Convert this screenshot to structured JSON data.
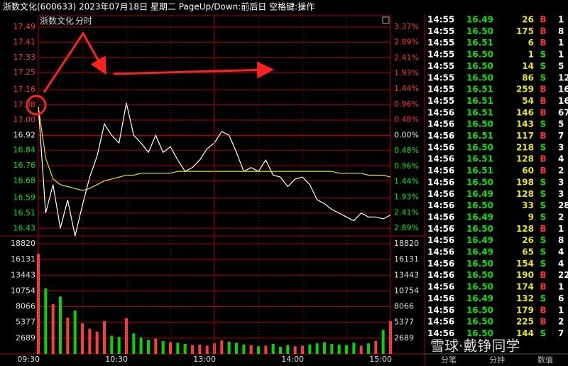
{
  "header": {
    "title": "浙数文化(600633)  2023年07月18日  星期二  PageUp/Down:前后日  空格键:操作"
  },
  "chart_data": [
    {
      "type": "line",
      "title": "浙数文化",
      "subtitle": "分时",
      "prev_close": 16.92,
      "x": [
        "09:30",
        "09:35",
        "09:40",
        "09:45",
        "09:50",
        "09:55",
        "10:00",
        "10:05",
        "10:10",
        "10:15",
        "10:20",
        "10:25",
        "10:30",
        "10:35",
        "10:40",
        "10:45",
        "10:50",
        "10:55",
        "11:00",
        "11:05",
        "11:10",
        "11:15",
        "11:20",
        "11:25",
        "11:30",
        "13:05",
        "13:10",
        "13:15",
        "13:20",
        "13:25",
        "13:30",
        "13:35",
        "13:40",
        "13:45",
        "13:50",
        "13:55",
        "14:00",
        "14:05",
        "14:10",
        "14:15",
        "14:20",
        "14:25",
        "14:30",
        "14:35",
        "14:40",
        "14:45",
        "14:50",
        "14:55",
        "15:00"
      ],
      "series": [
        {
          "color": "#ffffff",
          "values": [
            17.07,
            16.51,
            16.66,
            16.43,
            16.58,
            16.39,
            16.55,
            16.7,
            16.81,
            16.98,
            16.92,
            16.88,
            17.09,
            16.92,
            16.88,
            16.83,
            16.92,
            16.83,
            16.86,
            16.79,
            16.73,
            16.75,
            16.79,
            16.85,
            16.88,
            16.94,
            16.92,
            16.83,
            16.73,
            16.75,
            16.73,
            16.79,
            16.71,
            16.7,
            16.65,
            16.69,
            16.7,
            16.66,
            16.58,
            16.56,
            16.53,
            16.51,
            16.49,
            16.47,
            16.51,
            16.49,
            16.49,
            16.48,
            16.5
          ]
        },
        {
          "color": "#e8e800",
          "values": [
            17.07,
            16.8,
            16.69,
            16.66,
            16.65,
            16.64,
            16.63,
            16.64,
            16.66,
            16.68,
            16.69,
            16.7,
            16.71,
            16.71,
            16.72,
            16.72,
            16.72,
            16.72,
            16.72,
            16.73,
            16.73,
            16.73,
            16.73,
            16.73,
            16.73,
            16.73,
            16.73,
            16.73,
            16.73,
            16.73,
            16.73,
            16.73,
            16.73,
            16.73,
            16.73,
            16.73,
            16.73,
            16.73,
            16.73,
            16.73,
            16.73,
            16.72,
            16.72,
            16.72,
            16.72,
            16.71,
            16.71,
            16.71,
            16.7
          ]
        }
      ],
      "ylim": [
        16.39,
        17.55
      ],
      "yticks": [
        17.49,
        17.41,
        17.33,
        17.25,
        17.16,
        17.08,
        {
          "value": 17,
          "label": "17.00"
        },
        16.92,
        16.84,
        16.76,
        16.68,
        16.59,
        16.51,
        16.43
      ],
      "y2lim": [
        -3.13,
        3.72
      ],
      "y2ticks": [
        {
          "value": 3.37,
          "label": "3.37%"
        },
        {
          "value": 2.89,
          "label": "2.89%"
        },
        {
          "value": 2.41,
          "label": "2.41%"
        },
        {
          "value": 1.93,
          "label": "1.93%"
        },
        {
          "value": 1.44,
          "label": "1.44%"
        },
        {
          "value": 0.96,
          "label": "0.96%"
        },
        {
          "value": 0.48,
          "label": "0.48%"
        },
        {
          "value": 0,
          "label": "0.00%"
        },
        {
          "value": -0.48,
          "label": "0.48%"
        },
        {
          "value": -0.96,
          "label": "0.96%"
        },
        {
          "value": -1.44,
          "label": "1.44%"
        },
        {
          "value": -1.93,
          "label": "1.93%"
        },
        {
          "value": -2.41,
          "label": "2.41%"
        },
        {
          "value": -2.89,
          "label": "2.89%"
        }
      ],
      "grid": true
    },
    {
      "type": "bar",
      "up_color": "#ff3c3c",
      "down_color": "#00d800",
      "x": [
        "09:30",
        "09:35",
        "09:40",
        "09:45",
        "09:50",
        "09:55",
        "10:00",
        "10:05",
        "10:10",
        "10:15",
        "10:20",
        "10:25",
        "10:30",
        "10:35",
        "10:40",
        "10:45",
        "10:50",
        "10:55",
        "11:00",
        "11:05",
        "11:10",
        "11:15",
        "11:20",
        "11:25",
        "11:30",
        "13:05",
        "13:10",
        "13:15",
        "13:20",
        "13:25",
        "13:30",
        "13:35",
        "13:40",
        "13:45",
        "13:50",
        "13:55",
        "14:00",
        "14:05",
        "14:10",
        "14:15",
        "14:20",
        "14:25",
        "14:30",
        "14:35",
        "14:40",
        "14:45",
        "14:50",
        "14:55",
        "15:00"
      ],
      "values": [
        17100,
        11200,
        8500,
        9800,
        6200,
        7400,
        5200,
        4300,
        3800,
        5600,
        3100,
        2900,
        6100,
        3500,
        2800,
        2400,
        2600,
        2200,
        2000,
        1900,
        1700,
        1500,
        1600,
        1400,
        1800,
        2300,
        2100,
        1900,
        1600,
        1500,
        1300,
        1400,
        1700,
        1200,
        1500,
        1300,
        1400,
        1600,
        1800,
        2000,
        1700,
        1600,
        1500,
        1900,
        1400,
        1800,
        2200,
        4100,
        5600
      ],
      "ylim": [
        0,
        20150
      ],
      "yticks": [
        18820,
        16131,
        13443,
        10754,
        8066,
        5377,
        2689
      ],
      "xticks": [
        "09:30",
        "10:30",
        "13:00",
        "14:00",
        "15:00"
      ],
      "grid": true
    }
  ],
  "trades": {
    "rows": [
      [
        "14:55",
        "16.49",
        "26",
        "B",
        "1"
      ],
      [
        "14:55",
        "16.50",
        "175",
        "B",
        "8"
      ],
      [
        "14:55",
        "16.51",
        "6",
        "B",
        "1"
      ],
      [
        "14:55",
        "16.50",
        "1",
        "S",
        "1"
      ],
      [
        "14:55",
        "16.50",
        "14",
        "S",
        "5"
      ],
      [
        "14:55",
        "16.50",
        "86",
        "S",
        "12"
      ],
      [
        "14:55",
        "16.51",
        "259",
        "B",
        "16"
      ],
      [
        "14:55",
        "16.51",
        "54",
        "B",
        "16"
      ],
      [
        "14:56",
        "16.51",
        "146",
        "B",
        "67"
      ],
      [
        "14:56",
        "16.50",
        "143",
        "S",
        "5"
      ],
      [
        "14:56",
        "16.51",
        "117",
        "B",
        "7"
      ],
      [
        "14:56",
        "16.50",
        "218",
        "S",
        "3"
      ],
      [
        "14:56",
        "16.51",
        "128",
        "B",
        "4"
      ],
      [
        "14:56",
        "16.51",
        "60",
        "B",
        "2"
      ],
      [
        "14:56",
        "16.50",
        "198",
        "S",
        "3"
      ],
      [
        "14:56",
        "16.49",
        "128",
        "S",
        "3"
      ],
      [
        "14:56",
        "16.50",
        "33",
        "S",
        "28"
      ],
      [
        "14:56",
        "16.49",
        "9",
        "S",
        "2"
      ],
      [
        "14:56",
        "16.50",
        "128",
        "B",
        "1"
      ],
      [
        "14:56",
        "16.49",
        "26",
        "S",
        "8"
      ],
      [
        "14:56",
        "16.49",
        "65",
        "S",
        "4"
      ],
      [
        "14:56",
        "16.50",
        "154",
        "S",
        "4"
      ],
      [
        "14:56",
        "16.50",
        "190",
        "B",
        "22"
      ],
      [
        "14:56",
        "16.50",
        "174",
        "B",
        "1"
      ],
      [
        "14:56",
        "16.49",
        "132",
        "S",
        "6"
      ],
      [
        "14:56",
        "16.50",
        "179",
        "B",
        "1"
      ],
      [
        "14:56",
        "16.50",
        "225",
        "B",
        "2"
      ],
      [
        "14:56",
        "16.50",
        "144",
        "S",
        "7"
      ]
    ]
  },
  "tabs": [
    "分笔",
    "分钟",
    "数值"
  ],
  "watermark": "雪球·戴铮同学"
}
